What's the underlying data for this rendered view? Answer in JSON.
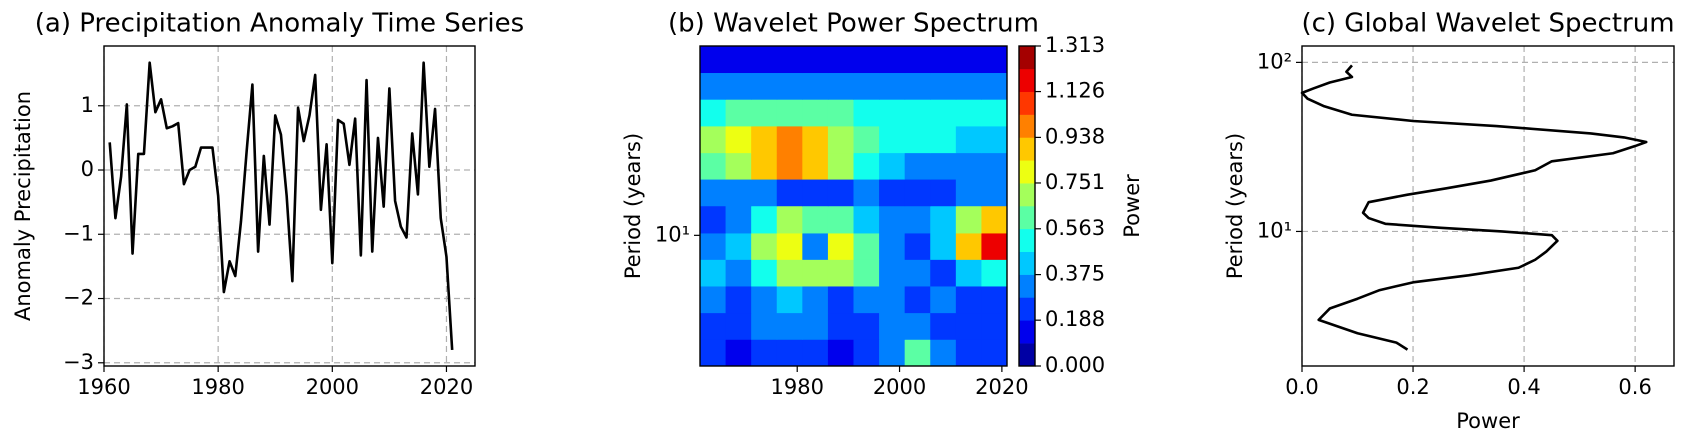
{
  "chart_data": [
    {
      "type": "line",
      "title": "(a) Precipitation Anomaly Time Series",
      "ylabel": "Anomaly Precipitation",
      "x": [
        1961,
        1962,
        1963,
        1964,
        1965,
        1966,
        1967,
        1968,
        1969,
        1970,
        1971,
        1972,
        1973,
        1974,
        1975,
        1976,
        1977,
        1978,
        1979,
        1980,
        1981,
        1982,
        1983,
        1984,
        1985,
        1986,
        1987,
        1988,
        1989,
        1990,
        1991,
        1992,
        1993,
        1994,
        1995,
        1996,
        1997,
        1998,
        1999,
        2000,
        2001,
        2002,
        2003,
        2004,
        2005,
        2006,
        2007,
        2008,
        2009,
        2010,
        2011,
        2012,
        2013,
        2014,
        2015,
        2016,
        2017,
        2018,
        2019,
        2020,
        2021
      ],
      "values": [
        0.43,
        -0.75,
        -0.1,
        1.02,
        -1.3,
        0.25,
        0.25,
        1.67,
        0.9,
        1.1,
        0.65,
        0.68,
        0.73,
        -0.22,
        0.0,
        0.05,
        0.35,
        0.35,
        0.35,
        -0.4,
        -1.9,
        -1.42,
        -1.65,
        -0.8,
        0.3,
        1.33,
        -1.27,
        0.22,
        -0.85,
        0.85,
        0.55,
        -0.4,
        -1.73,
        0.97,
        0.45,
        0.85,
        1.48,
        -0.62,
        0.4,
        -1.45,
        0.78,
        0.72,
        0.08,
        0.8,
        -1.33,
        1.4,
        -1.27,
        0.5,
        -0.57,
        1.27,
        -0.48,
        -0.88,
        -1.05,
        0.57,
        -0.38,
        1.67,
        0.05,
        0.95,
        -0.75,
        -1.35,
        -2.8
      ],
      "color": "#000000",
      "xlim": [
        1960,
        2025
      ],
      "ylim": [
        -3.05,
        1.93
      ],
      "xticks": [
        1960,
        1980,
        2000,
        2020
      ],
      "yticks": [
        {
          "value": -3,
          "label": "−3"
        },
        {
          "value": -2,
          "label": "−2"
        },
        {
          "value": -1,
          "label": "−1"
        },
        0,
        1
      ],
      "grid": true
    },
    {
      "type": "heatmap",
      "title": "(b) Wavelet Power Spectrum",
      "ylabel": "Period (years)",
      "xbins": [
        1961,
        1966,
        1971,
        1976,
        1981,
        1986,
        1991,
        1996,
        2001,
        2006,
        2011,
        2016,
        2021
      ],
      "ybins": [
        2,
        2.78,
        3.86,
        5.36,
        7.44,
        10.3,
        14.4,
        20,
        27.7,
        38.5,
        53.5,
        74.3,
        103
      ],
      "z": [
        [
          0.2,
          0.15,
          0.2,
          0.25,
          0.2,
          0.15,
          0.2,
          0.3,
          0.6,
          0.3,
          0.2,
          0.2
        ],
        [
          0.25,
          0.2,
          0.3,
          0.3,
          0.35,
          0.2,
          0.2,
          0.3,
          0.35,
          0.2,
          0.25,
          0.2
        ],
        [
          0.3,
          0.2,
          0.35,
          0.4,
          0.3,
          0.25,
          0.3,
          0.35,
          0.2,
          0.3,
          0.25,
          0.2
        ],
        [
          0.4,
          0.3,
          0.5,
          0.75,
          0.7,
          0.75,
          0.65,
          0.35,
          0.3,
          0.25,
          0.4,
          0.5
        ],
        [
          0.3,
          0.45,
          0.75,
          0.8,
          0.3,
          0.8,
          0.6,
          0.3,
          0.2,
          0.4,
          0.9,
          1.2
        ],
        [
          0.2,
          0.3,
          0.55,
          0.7,
          0.6,
          0.6,
          0.4,
          0.3,
          0.3,
          0.4,
          0.7,
          0.9
        ],
        [
          0.35,
          0.3,
          0.3,
          0.25,
          0.2,
          0.25,
          0.3,
          0.2,
          0.2,
          0.25,
          0.35,
          0.3
        ],
        [
          0.6,
          0.75,
          0.9,
          1.0,
          0.85,
          0.7,
          0.55,
          0.4,
          0.35,
          0.3,
          0.3,
          0.3
        ],
        [
          0.7,
          0.8,
          0.9,
          0.95,
          0.85,
          0.75,
          0.6,
          0.55,
          0.5,
          0.5,
          0.45,
          0.45
        ],
        [
          0.55,
          0.6,
          0.65,
          0.65,
          0.6,
          0.6,
          0.55,
          0.55,
          0.5,
          0.5,
          0.5,
          0.5
        ],
        [
          0.3,
          0.3,
          0.3,
          0.3,
          0.3,
          0.3,
          0.3,
          0.3,
          0.3,
          0.3,
          0.3,
          0.3
        ],
        [
          0.15,
          0.15,
          0.15,
          0.15,
          0.15,
          0.15,
          0.15,
          0.15,
          0.15,
          0.15,
          0.15,
          0.15
        ]
      ],
      "colormap": "jet",
      "levels": 14,
      "xlim": [
        1961,
        2021
      ],
      "ylim": [
        2,
        103
      ],
      "log_y": true,
      "xticks": [
        1980,
        2000,
        2020
      ],
      "yticks": [
        {
          "value": 10,
          "label": "10¹"
        }
      ],
      "colorbar": {
        "label": "Power",
        "lim": [
          0,
          1.313
        ],
        "ticks": [
          {
            "value": 0,
            "label": "0.000"
          },
          0.188,
          0.375,
          0.563,
          0.751,
          0.938,
          1.126,
          1.313
        ]
      }
    },
    {
      "type": "line",
      "orientation": "horizontal",
      "title": "(c) Global Wavelet Spectrum",
      "xlabel": "Power",
      "ylabel": "Period (years)",
      "y": [
        2.0,
        2.2,
        2.5,
        3.0,
        3.5,
        4.0,
        4.5,
        5.0,
        5.5,
        6.1,
        6.8,
        7.6,
        8.8,
        9.5,
        10,
        10.5,
        11.1,
        12,
        12.9,
        14.9,
        16.5,
        18,
        20,
        23,
        26,
        29,
        32,
        33.8,
        36,
        38,
        42,
        45,
        49,
        55,
        61,
        66,
        70,
        76,
        82,
        88,
        96
      ],
      "values": [
        0.19,
        0.17,
        0.1,
        0.03,
        0.05,
        0.1,
        0.14,
        0.2,
        0.3,
        0.39,
        0.42,
        0.44,
        0.46,
        0.45,
        0.36,
        0.25,
        0.15,
        0.12,
        0.11,
        0.12,
        0.19,
        0.26,
        0.34,
        0.42,
        0.45,
        0.56,
        0.6,
        0.62,
        0.58,
        0.52,
        0.35,
        0.2,
        0.09,
        0.04,
        0.01,
        0.0,
        0.02,
        0.05,
        0.09,
        0.08,
        0.09
      ],
      "color": "#000000",
      "xlim": [
        0,
        0.67
      ],
      "ylim": [
        1.6,
        125
      ],
      "log_y": true,
      "xticks": [
        {
          "value": 0,
          "label": "0.0"
        },
        0.2,
        0.4,
        0.6
      ],
      "yticks": [
        {
          "value": 10,
          "label": "10¹"
        },
        {
          "value": 100,
          "label": "10²"
        }
      ],
      "grid": true
    }
  ]
}
